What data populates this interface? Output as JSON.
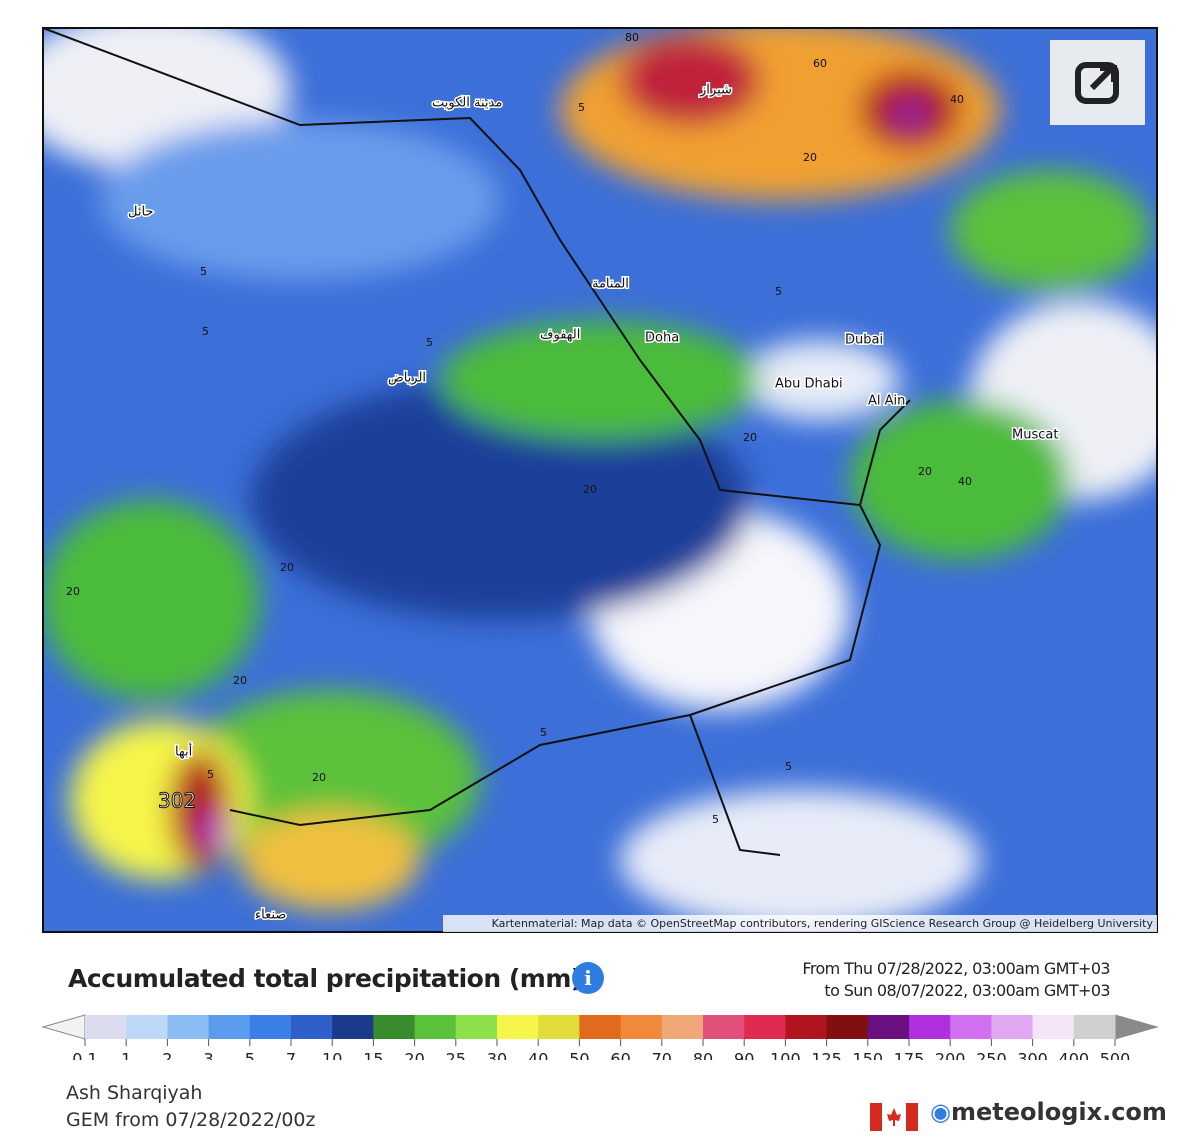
{
  "map": {
    "cities": [
      "مدينة الكويت",
      "شيراز",
      "حائل",
      "المنامة",
      "الهفوف",
      "Doha",
      "الرياض",
      "Dubai",
      "Abu Dhabi",
      "Al Ain",
      "Muscat",
      "أبها",
      "صنعاء"
    ],
    "contours": [
      "5",
      "5",
      "5",
      "5",
      "20",
      "20",
      "20",
      "20",
      "20",
      "40",
      "60",
      "80",
      "5",
      "5",
      "20",
      "40",
      "5",
      "5",
      "5",
      "20",
      "20"
    ],
    "max_value": "302",
    "attribution": "Kartenmaterial: Map data © OpenStreetMap contributors, rendering GIScience Research Group @ Heidelberg University"
  },
  "header": {
    "title": "Accumulated total precipitation (mm)",
    "from": "From Thu 07/28/2022, 03:00am GMT+03",
    "to": "to Sun 08/07/2022, 03:00am GMT+03"
  },
  "legend": {
    "ticks": [
      "0.1",
      "1",
      "2",
      "3",
      "5",
      "7",
      "10",
      "15",
      "20",
      "25",
      "30",
      "40",
      "50",
      "60",
      "70",
      "80",
      "90",
      "100",
      "125",
      "150",
      "175",
      "200",
      "250",
      "300",
      "400",
      "500"
    ],
    "colors": [
      "#dcdcf0",
      "#bcd8f7",
      "#8cbcf4",
      "#5b9cef",
      "#3c7fe6",
      "#2f5fc8",
      "#1c3a8c",
      "#3a8a2e",
      "#5cc13a",
      "#8ee04a",
      "#f5f54a",
      "#e0dc3a",
      "#e06a1e",
      "#f08a3a",
      "#f0a878",
      "#e0507a",
      "#e02a50",
      "#b0141e",
      "#801010",
      "#6a1080",
      "#b030e0",
      "#d070f0",
      "#e0a8f0",
      "#f4e4f8",
      "#d0d0d0"
    ]
  },
  "footer": {
    "location": "Ash Sharqiyah",
    "model": "GEM from 07/28/2022/00z",
    "brand": "meteologix.com"
  }
}
